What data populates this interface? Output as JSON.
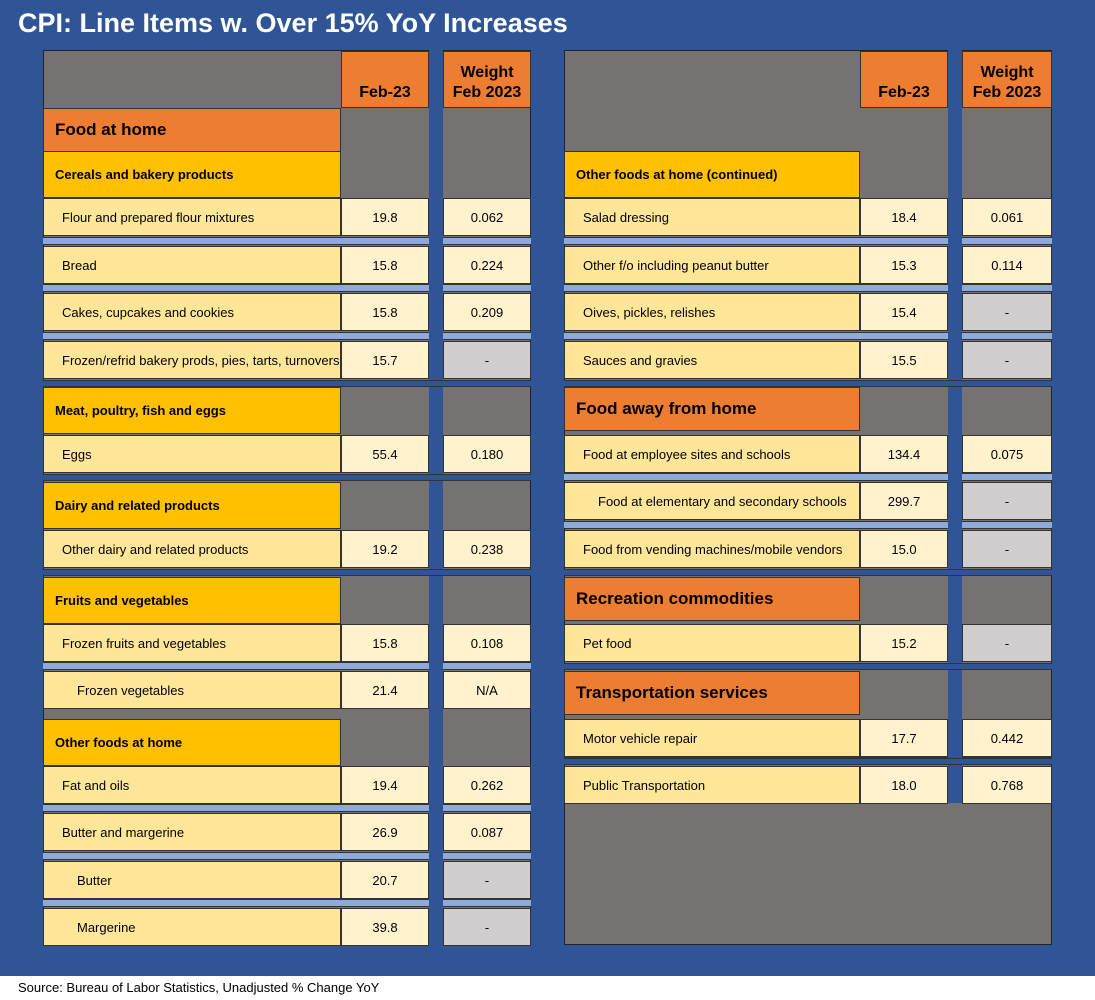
{
  "title": "CPI: Line Items w. Over 15% YoY Increases",
  "footer": "Source: Bureau of Labor Statistics, Unadjusted % Change YoY",
  "colors": {
    "background": "#2f5597",
    "category": "#ed7d31",
    "subcategory": "#ffc000",
    "row_light": "#fff2cc",
    "row_tan": "#ffe699",
    "no_weight": "#d0cece",
    "separator": "#8eaadb",
    "panel": "#777272"
  },
  "chart_data": {
    "type": "table",
    "columns": [
      "Feb-23",
      "Weight Feb 2023"
    ],
    "header_feb": "Feb-23",
    "header_w1": "Weight",
    "header_w2": "Feb 2023",
    "left": [
      {
        "kind": "cat",
        "label": "Food at home"
      },
      {
        "kind": "sub",
        "label": "Cereals and bakery products"
      },
      {
        "kind": "item",
        "label": "Flour and prepared flour mixtures",
        "feb": "19.8",
        "w": "0.062",
        "indent": 0
      },
      {
        "kind": "item",
        "label": "Bread",
        "feb": "15.8",
        "w": "0.224",
        "indent": 0
      },
      {
        "kind": "item",
        "label": "Cakes, cupcakes and cookies",
        "feb": "15.8",
        "w": "0.209",
        "indent": 0
      },
      {
        "kind": "item",
        "label": "Frozen/refrid bakery prods, pies, tarts, turnovers",
        "feb": "15.7",
        "w": "-",
        "indent": 0
      },
      {
        "kind": "sub",
        "label": "Meat, poultry, fish and eggs"
      },
      {
        "kind": "item",
        "label": "Eggs",
        "feb": "55.4",
        "w": "0.180",
        "indent": 0
      },
      {
        "kind": "sub",
        "label": "Dairy and related products"
      },
      {
        "kind": "item",
        "label": "Other dairy and related products",
        "feb": "19.2",
        "w": "0.238",
        "indent": 0
      },
      {
        "kind": "sub",
        "label": "Fruits and vegetables"
      },
      {
        "kind": "item",
        "label": "Frozen fruits and vegetables",
        "feb": "15.8",
        "w": "0.108",
        "indent": 0
      },
      {
        "kind": "item",
        "label": "Frozen vegetables",
        "feb": "21.4",
        "w": "N/A",
        "indent": 1
      },
      {
        "kind": "sub",
        "label": "Other foods at home"
      },
      {
        "kind": "item",
        "label": "Fat and oils",
        "feb": "19.4",
        "w": "0.262",
        "indent": 0
      },
      {
        "kind": "item",
        "label": "Butter and margerine",
        "feb": "26.9",
        "w": "0.087",
        "indent": 0
      },
      {
        "kind": "item",
        "label": "Butter",
        "feb": "20.7",
        "w": "-",
        "indent": 1
      },
      {
        "kind": "item",
        "label": "Margerine",
        "feb": "39.8",
        "w": "-",
        "indent": 1
      }
    ],
    "right": [
      {
        "kind": "sub",
        "label": "Other foods at home (continued)"
      },
      {
        "kind": "item",
        "label": "Salad dressing",
        "feb": "18.4",
        "w": "0.061",
        "indent": 0
      },
      {
        "kind": "item",
        "label": "Other f/o including peanut butter",
        "feb": "15.3",
        "w": "0.114",
        "indent": 0
      },
      {
        "kind": "item",
        "label": "Oives, pickles, relishes",
        "feb": "15.4",
        "w": "-",
        "indent": 0
      },
      {
        "kind": "item",
        "label": "Sauces and gravies",
        "feb": "15.5",
        "w": "-",
        "indent": 0
      },
      {
        "kind": "cat",
        "label": "Food away from home"
      },
      {
        "kind": "item",
        "label": "Food at employee sites and schools",
        "feb": "134.4",
        "w": "0.075",
        "indent": 0
      },
      {
        "kind": "item",
        "label": "Food at elementary and secondary schools",
        "feb": "299.7",
        "w": "-",
        "indent": 1
      },
      {
        "kind": "item",
        "label": "Food from vending machines/mobile vendors",
        "feb": "15.0",
        "w": "-",
        "indent": 0
      },
      {
        "kind": "cat",
        "label": "Recreation commodities"
      },
      {
        "kind": "item",
        "label": "Pet food",
        "feb": "15.2",
        "w": "-",
        "indent": 0
      },
      {
        "kind": "cat",
        "label": "Transportation services"
      },
      {
        "kind": "item",
        "label": "Motor vehicle repair",
        "feb": "17.7",
        "w": "0.442",
        "indent": 0
      },
      {
        "kind": "item",
        "label": "Public Transportation",
        "feb": "18.0",
        "w": "0.768",
        "indent": 0
      }
    ]
  }
}
